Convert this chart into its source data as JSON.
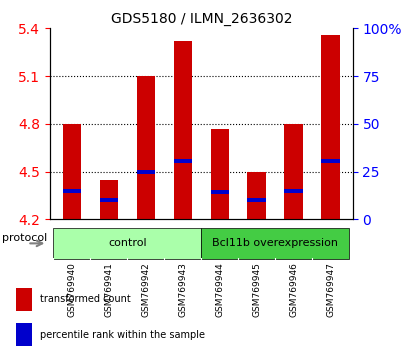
{
  "title": "GDS5180 / ILMN_2636302",
  "samples": [
    "GSM769940",
    "GSM769941",
    "GSM769942",
    "GSM769943",
    "GSM769944",
    "GSM769945",
    "GSM769946",
    "GSM769947"
  ],
  "bar_tops": [
    4.8,
    4.45,
    5.1,
    5.32,
    4.77,
    4.5,
    4.8,
    5.36
  ],
  "bar_base": 4.2,
  "blue_vals": [
    4.38,
    4.32,
    4.5,
    4.57,
    4.37,
    4.32,
    4.38,
    4.57
  ],
  "bar_color": "#cc0000",
  "blue_color": "#0000cc",
  "ylim": [
    4.2,
    5.4
  ],
  "yticks_left": [
    4.2,
    4.5,
    4.8,
    5.1,
    5.4
  ],
  "yticks_right": [
    0,
    25,
    50,
    75,
    100
  ],
  "ytick_labels_right": [
    "0",
    "25",
    "50",
    "75",
    "100%"
  ],
  "groups": [
    {
      "label": "control",
      "indices": [
        0,
        1,
        2,
        3
      ],
      "color": "#aaffaa"
    },
    {
      "label": "Bcl11b overexpression",
      "indices": [
        4,
        5,
        6,
        7
      ],
      "color": "#44cc44"
    }
  ],
  "group_label": "protocol",
  "legend_items": [
    {
      "label": "transformed count",
      "color": "#cc0000",
      "marker": "s"
    },
    {
      "label": "percentile rank within the sample",
      "color": "#0000cc",
      "marker": "s"
    }
  ],
  "bar_width": 0.5,
  "grid_color": "#000000",
  "bg_color": "#ffffff",
  "label_area_color": "#dddddd"
}
